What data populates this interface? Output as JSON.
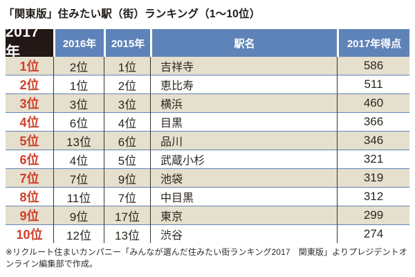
{
  "title": "「関東版」住みたい駅（街）ランキング（1～10位）",
  "table": {
    "columns": [
      "2017年",
      "2016年",
      "2015年",
      "駅名",
      "2017年得点"
    ],
    "rows": [
      {
        "rank2017": "1位",
        "rank2016": "2位",
        "rank2015": "1位",
        "station": "吉祥寺",
        "score": "586"
      },
      {
        "rank2017": "2位",
        "rank2016": "1位",
        "rank2015": "2位",
        "station": "恵比寿",
        "score": "511"
      },
      {
        "rank2017": "3位",
        "rank2016": "3位",
        "rank2015": "3位",
        "station": "横浜",
        "score": "460"
      },
      {
        "rank2017": "4位",
        "rank2016": "6位",
        "rank2015": "4位",
        "station": "目黒",
        "score": "366"
      },
      {
        "rank2017": "5位",
        "rank2016": "13位",
        "rank2015": "6位",
        "station": "品川",
        "score": "346"
      },
      {
        "rank2017": "6位",
        "rank2016": "4位",
        "rank2015": "5位",
        "station": "武蔵小杉",
        "score": "321"
      },
      {
        "rank2017": "7位",
        "rank2016": "7位",
        "rank2015": "9位",
        "station": "池袋",
        "score": "319"
      },
      {
        "rank2017": "8位",
        "rank2016": "11位",
        "rank2015": "7位",
        "station": "中目黒",
        "score": "312"
      },
      {
        "rank2017": "9位",
        "rank2016": "9位",
        "rank2015": "17位",
        "station": "東京",
        "score": "299"
      },
      {
        "rank2017": "10位",
        "rank2016": "12位",
        "rank2015": "13位",
        "station": "渋谷",
        "score": "274"
      }
    ]
  },
  "footnote": "※リクルート住まいカンパニー「みんなが選んだ住みたい街ランキング2017　関東版」よりプレジデントオンライン編集部で作成。",
  "colors": {
    "blue": "#5e83b8",
    "black-cell": "#231815",
    "beige": "#e5dfcd",
    "red": "#cf3e28"
  }
}
